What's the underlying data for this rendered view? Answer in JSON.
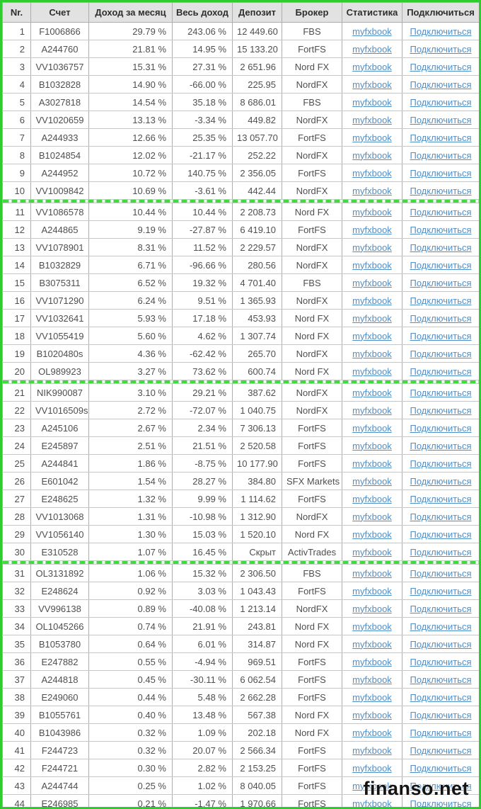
{
  "colors": {
    "accent_green": "#2fcc2f",
    "divider_green": "#3fdb3f",
    "link_blue": "#4f8fc8",
    "header_bg": "#e2e2e2"
  },
  "watermark": "finanso.net",
  "table": {
    "headers": [
      "Nr.",
      "Счет",
      "Доход за месяц",
      "Весь доход",
      "Депозит",
      "Брокер",
      "Статистика",
      "Подключиться"
    ],
    "link_labels": {
      "stats": "myfxbook",
      "connect": "Подключиться"
    },
    "group_end_after": [
      10,
      20,
      30
    ],
    "rows": [
      [
        "1",
        "F1006866",
        "29.79 %",
        "243.06 %",
        "12 449.60",
        "FBS"
      ],
      [
        "2",
        "A244760",
        "21.81 %",
        "14.95 %",
        "15 133.20",
        "FortFS"
      ],
      [
        "3",
        "VV1036757",
        "15.31 %",
        "27.31 %",
        "2 651.96",
        "Nord FX"
      ],
      [
        "4",
        "B1032828",
        "14.90 %",
        "-66.00 %",
        "225.95",
        "NordFX"
      ],
      [
        "5",
        "A3027818",
        "14.54 %",
        "35.18 %",
        "8 686.01",
        "FBS"
      ],
      [
        "6",
        "VV1020659",
        "13.13 %",
        "-3.34 %",
        "449.82",
        "NordFX"
      ],
      [
        "7",
        "A244933",
        "12.66 %",
        "25.35 %",
        "13 057.70",
        "FortFS"
      ],
      [
        "8",
        "B1024854",
        "12.02 %",
        "-21.17 %",
        "252.22",
        "NordFX"
      ],
      [
        "9",
        "A244952",
        "10.72 %",
        "140.75 %",
        "2 356.05",
        "FortFS"
      ],
      [
        "10",
        "VV1009842",
        "10.69 %",
        "-3.61 %",
        "442.44",
        "NordFX"
      ],
      [
        "11",
        "VV1086578",
        "10.44 %",
        "10.44 %",
        "2 208.73",
        "Nord FX"
      ],
      [
        "12",
        "A244865",
        "9.19 %",
        "-27.87 %",
        "6 419.10",
        "FortFS"
      ],
      [
        "13",
        "VV1078901",
        "8.31 %",
        "11.52 %",
        "2 229.57",
        "NordFX"
      ],
      [
        "14",
        "B1032829",
        "6.71 %",
        "-96.66 %",
        "280.56",
        "NordFX"
      ],
      [
        "15",
        "B3075311",
        "6.52 %",
        "19.32 %",
        "4 701.40",
        "FBS"
      ],
      [
        "16",
        "VV1071290",
        "6.24 %",
        "9.51 %",
        "1 365.93",
        "NordFX"
      ],
      [
        "17",
        "VV1032641",
        "5.93 %",
        "17.18 %",
        "453.93",
        "Nord FX"
      ],
      [
        "18",
        "VV1055419",
        "5.60 %",
        "4.62 %",
        "1 307.74",
        "Nord FX"
      ],
      [
        "19",
        "B1020480s",
        "4.36 %",
        "-62.42 %",
        "265.70",
        "NordFX"
      ],
      [
        "20",
        "OL989923",
        "3.27 %",
        "73.62 %",
        "600.74",
        "Nord FX"
      ],
      [
        "21",
        "NIK990087",
        "3.10 %",
        "29.21 %",
        "387.62",
        "NordFX"
      ],
      [
        "22",
        "VV1016509s",
        "2.72 %",
        "-72.07 %",
        "1 040.75",
        "NordFX"
      ],
      [
        "23",
        "A245106",
        "2.67 %",
        "2.34 %",
        "7 306.13",
        "FortFS"
      ],
      [
        "24",
        "E245897",
        "2.51 %",
        "21.51 %",
        "2 520.58",
        "FortFS"
      ],
      [
        "25",
        "A244841",
        "1.86 %",
        "-8.75 %",
        "10 177.90",
        "FortFS"
      ],
      [
        "26",
        "E601042",
        "1.54 %",
        "28.27 %",
        "384.80",
        "SFX Markets"
      ],
      [
        "27",
        "E248625",
        "1.32 %",
        "9.99 %",
        "1 114.62",
        "FortFS"
      ],
      [
        "28",
        "VV1013068",
        "1.31 %",
        "-10.98 %",
        "1 312.90",
        "NordFX"
      ],
      [
        "29",
        "VV1056140",
        "1.30 %",
        "15.03 %",
        "1 520.10",
        "Nord FX"
      ],
      [
        "30",
        "E310528",
        "1.07 %",
        "16.45 %",
        "Скрыт",
        "ActivTrades"
      ],
      [
        "31",
        "OL3131892",
        "1.06 %",
        "15.32 %",
        "2 306.50",
        "FBS"
      ],
      [
        "32",
        "E248624",
        "0.92 %",
        "3.03 %",
        "1 043.43",
        "FortFS"
      ],
      [
        "33",
        "VV996138",
        "0.89 %",
        "-40.08 %",
        "1 213.14",
        "NordFX"
      ],
      [
        "34",
        "OL1045266",
        "0.74 %",
        "21.91 %",
        "243.81",
        "Nord FX"
      ],
      [
        "35",
        "B1053780",
        "0.64 %",
        "6.01 %",
        "314.87",
        "Nord FX"
      ],
      [
        "36",
        "E247882",
        "0.55 %",
        "-4.94 %",
        "969.51",
        "FortFS"
      ],
      [
        "37",
        "A244818",
        "0.45 %",
        "-30.11 %",
        "6 062.54",
        "FortFS"
      ],
      [
        "38",
        "E249060",
        "0.44 %",
        "5.48 %",
        "2 662.28",
        "FortFS"
      ],
      [
        "39",
        "B1055761",
        "0.40 %",
        "13.48 %",
        "567.38",
        "Nord FX"
      ],
      [
        "40",
        "B1043986",
        "0.32 %",
        "1.09 %",
        "202.18",
        "Nord FX"
      ],
      [
        "41",
        "F244723",
        "0.32 %",
        "20.07 %",
        "2 566.34",
        "FortFS"
      ],
      [
        "42",
        "F244721",
        "0.30 %",
        "2.82 %",
        "2 153.25",
        "FortFS"
      ],
      [
        "43",
        "A244744",
        "0.25 %",
        "1.02 %",
        "8 040.05",
        "FortFS"
      ],
      [
        "44",
        "E246985",
        "0.21 %",
        "-1.47 %",
        "1 970.66",
        "FortFS"
      ]
    ]
  }
}
